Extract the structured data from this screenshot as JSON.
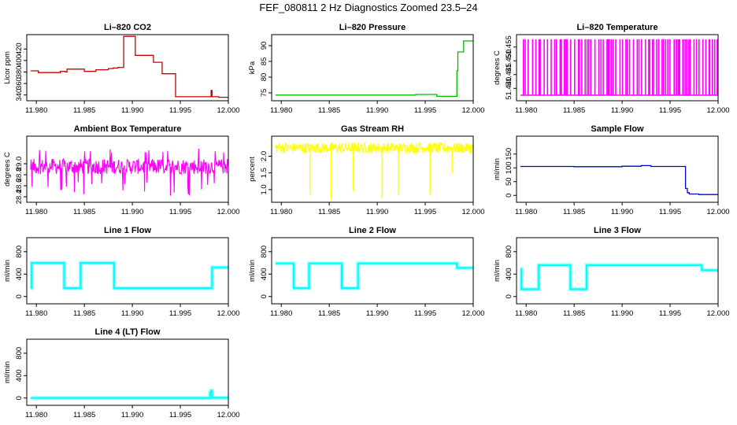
{
  "figure_title": "FEF_080811  2 Hz Diagnostics Zoomed 23.5–24",
  "chart_data": [
    {
      "type": "line",
      "title": "Li–820 CO2",
      "ylabel": "Licor ppm",
      "color": "#cc0000",
      "xlim": [
        11.979,
        12.0
      ],
      "ylim": [
        330,
        445
      ],
      "xticks": [
        "11.980",
        "11.985",
        "11.990",
        "11.995",
        "12.000"
      ],
      "xtick_values": [
        11.98,
        11.985,
        11.99,
        11.995,
        12.0
      ],
      "yticks": [
        "340",
        "360",
        "380",
        "400",
        "420"
      ],
      "ytick_values": [
        340,
        360,
        380,
        400,
        420
      ],
      "series": [
        {
          "x": [
            11.9794,
            11.98,
            11.9802,
            11.981,
            11.9818,
            11.9825,
            11.983,
            11.9832,
            11.984,
            11.9845,
            11.985,
            11.9855,
            11.986,
            11.9862,
            11.987,
            11.9875,
            11.988,
            11.9885,
            11.989,
            11.9891,
            11.9895,
            11.9902,
            11.9903,
            11.991,
            11.9914,
            11.9922,
            11.9926,
            11.993,
            11.9931,
            11.994,
            11.9944,
            11.9945,
            11.995,
            11.996,
            11.997,
            11.998,
            11.9982,
            11.9983,
            11.999,
            12.0
          ],
          "y": [
            382,
            382,
            379,
            379,
            379,
            381,
            380,
            385,
            385,
            385,
            381,
            381,
            381,
            384,
            384,
            386,
            387,
            388,
            388,
            442,
            442,
            442,
            409,
            409,
            409,
            397,
            397,
            397,
            377,
            377,
            377,
            337,
            337,
            337,
            337,
            337,
            348,
            337,
            336,
            336
          ]
        }
      ]
    },
    {
      "type": "line",
      "title": "Li–820 Pressure",
      "ylabel": "kPa",
      "color": "#00bb00",
      "xlim": [
        11.979,
        12.0
      ],
      "ylim": [
        72.5,
        93.5
      ],
      "xticks": [
        "11.980",
        "11.985",
        "11.990",
        "11.995",
        "12.000"
      ],
      "xtick_values": [
        11.98,
        11.985,
        11.99,
        11.995,
        12.0
      ],
      "yticks": [
        "75",
        "80",
        "85",
        "90"
      ],
      "ytick_values": [
        75,
        80,
        85,
        90
      ],
      "series": [
        {
          "x": [
            11.9794,
            11.985,
            11.99,
            11.994,
            11.996,
            11.9962,
            11.998,
            11.9983,
            11.9984,
            11.999,
            12.0
          ],
          "y": [
            74.3,
            74.3,
            74.3,
            74.5,
            74.5,
            73.9,
            73.9,
            82.0,
            88.0,
            91.5,
            91.5
          ]
        }
      ]
    },
    {
      "type": "line",
      "title": "Li–820 Temperature",
      "ylabel": "degrees C",
      "color": "#ff00ff",
      "xlim": [
        11.979,
        12.0
      ],
      "ylim": [
        51.4355,
        51.4595
      ],
      "xticks": [
        "11.980",
        "11.985",
        "11.990",
        "11.995",
        "12.000"
      ],
      "xtick_values": [
        11.98,
        11.985,
        11.99,
        11.995,
        12.0
      ],
      "yticks": [
        "51.440",
        "51.445",
        "51.450",
        "51.455"
      ],
      "ytick_values": [
        51.44,
        51.445,
        51.45,
        51.455
      ],
      "series": [
        {
          "low": 51.4375,
          "high": 51.4578,
          "x_start": 11.9794,
          "x_end": 12.0
        }
      ]
    },
    {
      "type": "line",
      "title": "Ambient Box Temperature",
      "ylabel": "degrees C",
      "color": "#ff00ff",
      "xlim": [
        11.979,
        12.0
      ],
      "ylim": [
        28.3,
        29.5
      ],
      "xticks": [
        "11.980",
        "11.985",
        "11.990",
        "11.995",
        "12.000"
      ],
      "xtick_values": [
        11.98,
        11.985,
        11.99,
        11.995,
        12.0
      ],
      "yticks": [
        "28.4",
        "28.6",
        "28.8",
        "29.0"
      ],
      "ytick_values": [
        28.4,
        28.6,
        28.8,
        29.0
      ],
      "series": [
        {
          "mean": 28.95,
          "spread": 0.14,
          "spikes_low": 28.42,
          "spikes_high": 29.32,
          "x_start": 11.9794,
          "x_end": 12.0
        }
      ]
    },
    {
      "type": "line",
      "title": "Gas Stream RH",
      "ylabel": "percent",
      "color": "#ffff00",
      "xlim": [
        11.979,
        12.0
      ],
      "ylim": [
        0.62,
        2.6
      ],
      "xticks": [
        "11.980",
        "11.985",
        "11.990",
        "11.995",
        "12.000"
      ],
      "xtick_values": [
        11.98,
        11.985,
        11.99,
        11.995,
        12.0
      ],
      "yticks": [
        "1.0",
        "1.5",
        "2.0"
      ],
      "ytick_values": [
        1.0,
        1.5,
        2.0
      ],
      "series": [
        {
          "mean": 2.25,
          "spread": 0.16,
          "dips_x": [
            11.983,
            11.9852,
            11.9875,
            11.9905,
            11.9922,
            11.9955,
            11.9978
          ],
          "dips_y": [
            0.85,
            0.7,
            0.95,
            0.75,
            0.85,
            0.85,
            1.5
          ],
          "x_start": 11.9794,
          "x_end": 12.0
        }
      ]
    },
    {
      "type": "line",
      "title": "Sample Flow",
      "ylabel": "ml/min",
      "color": "#0000cc",
      "xlim": [
        11.979,
        12.0
      ],
      "ylim": [
        -25,
        215
      ],
      "xticks": [
        "11.980",
        "11.985",
        "11.990",
        "11.995",
        "12.000"
      ],
      "xtick_values": [
        11.98,
        11.985,
        11.99,
        11.995,
        12.0
      ],
      "yticks": [
        "0",
        "50",
        "100",
        "150"
      ],
      "ytick_values": [
        0,
        50,
        100,
        150
      ],
      "series": [
        {
          "x": [
            11.9794,
            11.985,
            11.99,
            11.992,
            11.993,
            11.9965,
            11.9966,
            11.9968,
            11.997,
            11.998,
            12.0
          ],
          "y": [
            105,
            104,
            106,
            108,
            105,
            105,
            25,
            10,
            5,
            3,
            2
          ]
        }
      ]
    },
    {
      "type": "line",
      "title": "Line 1 Flow",
      "ylabel": "ml/min",
      "color": "#00ffff",
      "xlim": [
        11.979,
        12.0
      ],
      "ylim": [
        -130,
        1050
      ],
      "xticks": [
        "11.980",
        "11.985",
        "11.990",
        "11.995",
        "12.000"
      ],
      "xtick_values": [
        11.98,
        11.985,
        11.99,
        11.995,
        12.0
      ],
      "yticks": [
        "0",
        "400",
        "800"
      ],
      "ytick_values": [
        0,
        400,
        800
      ],
      "series": [
        {
          "x": [
            11.9794,
            11.9795,
            11.9828,
            11.9829,
            11.9845,
            11.9846,
            11.988,
            11.9881,
            11.9982,
            11.9983,
            12.0
          ],
          "y": [
            150,
            600,
            600,
            150,
            150,
            600,
            600,
            150,
            150,
            520,
            520
          ]
        }
      ]
    },
    {
      "type": "line",
      "title": "Line 2 Flow",
      "ylabel": "ml/min",
      "color": "#00ffff",
      "xlim": [
        11.979,
        12.0
      ],
      "ylim": [
        -130,
        1050
      ],
      "xticks": [
        "11.980",
        "11.985",
        "11.990",
        "11.995",
        "12.000"
      ],
      "xtick_values": [
        11.98,
        11.985,
        11.99,
        11.995,
        12.0
      ],
      "yticks": [
        "0",
        "400",
        "800"
      ],
      "ytick_values": [
        0,
        400,
        800
      ],
      "series": [
        {
          "x": [
            11.9794,
            11.9812,
            11.9813,
            11.9828,
            11.9829,
            11.9862,
            11.9863,
            11.9879,
            11.988,
            11.9982,
            11.9983,
            12.0
          ],
          "y": [
            590,
            590,
            150,
            150,
            590,
            590,
            150,
            150,
            590,
            590,
            510,
            510
          ]
        }
      ]
    },
    {
      "type": "line",
      "title": "Line 3 Flow",
      "ylabel": "ml/min",
      "color": "#00ffff",
      "xlim": [
        11.979,
        12.0
      ],
      "ylim": [
        -130,
        1050
      ],
      "xticks": [
        "11.980",
        "11.985",
        "11.990",
        "11.995",
        "12.000"
      ],
      "xtick_values": [
        11.98,
        11.985,
        11.99,
        11.995,
        12.0
      ],
      "yticks": [
        "0",
        "400",
        "800"
      ],
      "ytick_values": [
        0,
        400,
        800
      ],
      "series": [
        {
          "x": [
            11.9794,
            11.9795,
            11.9796,
            11.9812,
            11.9813,
            11.9845,
            11.9846,
            11.9862,
            11.9863,
            11.9982,
            11.9983,
            12.0
          ],
          "y": [
            490,
            130,
            130,
            130,
            560,
            560,
            130,
            130,
            560,
            560,
            470,
            470
          ]
        }
      ]
    },
    {
      "type": "line",
      "title": "Line 4 (LT) Flow",
      "ylabel": "ml/min",
      "color": "#00ffff",
      "xlim": [
        11.979,
        12.0
      ],
      "ylim": [
        -130,
        1050
      ],
      "xticks": [
        "11.980",
        "11.985",
        "11.990",
        "11.995",
        "12.000"
      ],
      "xtick_values": [
        11.98,
        11.985,
        11.99,
        11.995,
        12.0
      ],
      "yticks": [
        "0",
        "400",
        "800"
      ],
      "ytick_values": [
        0,
        400,
        800
      ],
      "series": [
        {
          "x": [
            11.9794,
            11.998,
            11.9981,
            11.9982,
            11.9983,
            12.0
          ],
          "y": [
            2,
            2,
            100,
            130,
            5,
            5
          ]
        }
      ]
    }
  ]
}
